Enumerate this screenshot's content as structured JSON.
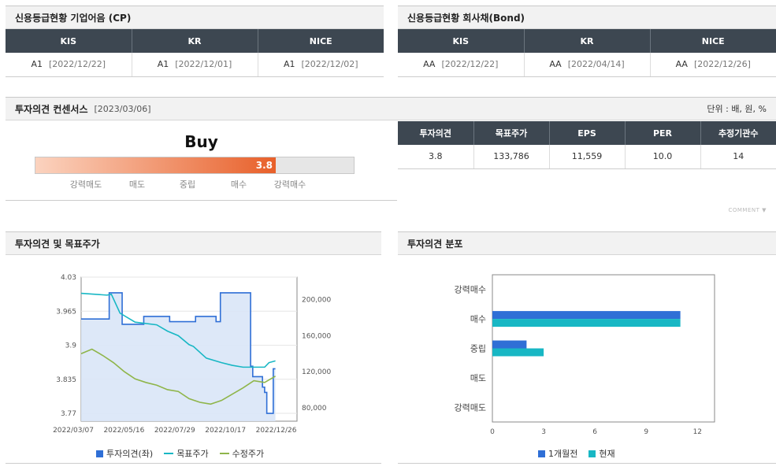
{
  "cp": {
    "title": "신용등급현황 기업어음 (CP)",
    "headers": [
      "KIS",
      "KR",
      "NICE"
    ],
    "cells": [
      {
        "grade": "A1",
        "date": "[2022/12/22]"
      },
      {
        "grade": "A1",
        "date": "[2022/12/01]"
      },
      {
        "grade": "A1",
        "date": "[2022/12/02]"
      }
    ]
  },
  "bond": {
    "title": "신용등급현황 회사채(Bond)",
    "headers": [
      "KIS",
      "KR",
      "NICE"
    ],
    "cells": [
      {
        "grade": "AA",
        "date": "[2022/12/22]"
      },
      {
        "grade": "AA",
        "date": "[2022/04/14]"
      },
      {
        "grade": "AA",
        "date": "[2022/12/26]"
      }
    ]
  },
  "consensus": {
    "title": "투자의견 컨센서스",
    "date": "[2023/03/06]",
    "unit": "단위 : 배, 원, %",
    "opinion_text": "Buy",
    "score": "3.8",
    "score_fraction": 0.755,
    "scale": [
      "강력매도",
      "매도",
      "중립",
      "매수",
      "강력매수"
    ],
    "headers": [
      "투자의견",
      "목표주가",
      "EPS",
      "PER",
      "추정기관수"
    ],
    "values": [
      "3.8",
      "133,786",
      "11,559",
      "10.0",
      "14"
    ],
    "comment_label": "COMMENT ▼"
  },
  "price_chart": {
    "title": "투자의견 및 목표주가",
    "legend": [
      "투자의견(좌)",
      "목표주가",
      "수정주가"
    ],
    "colors": {
      "opinion": "#2f6fd6",
      "target": "#18b7c4",
      "price": "#8fb54a",
      "area": "#d9e6f7"
    },
    "chart_data": {
      "type": "line",
      "x_ticks": [
        "2022/03/07",
        "2022/05/16",
        "2022/07/29",
        "2022/10/17",
        "2022/12/26"
      ],
      "y_left_ticks": [
        "4.03",
        "3.965",
        "3.9",
        "3.835",
        "3.77"
      ],
      "y_left_range": [
        3.755,
        4.03
      ],
      "y_right_ticks": [
        "200,000",
        "160,000",
        "120,000",
        "80,000"
      ],
      "y_right_range": [
        65000,
        225000
      ],
      "series": [
        {
          "name": "투자의견(좌)",
          "axis": "left",
          "points": [
            [
              0,
              3.95
            ],
            [
              0.12,
              3.95
            ],
            [
              0.13,
              4.0
            ],
            [
              0.18,
              4.0
            ],
            [
              0.19,
              3.94
            ],
            [
              0.28,
              3.94
            ],
            [
              0.29,
              3.955
            ],
            [
              0.4,
              3.955
            ],
            [
              0.41,
              3.945
            ],
            [
              0.52,
              3.945
            ],
            [
              0.53,
              3.955
            ],
            [
              0.62,
              3.955
            ],
            [
              0.625,
              3.945
            ],
            [
              0.64,
              3.945
            ],
            [
              0.645,
              4.0
            ],
            [
              0.78,
              4.0
            ],
            [
              0.785,
              3.86
            ],
            [
              0.79,
              3.86
            ],
            [
              0.795,
              3.84
            ],
            [
              0.83,
              3.84
            ],
            [
              0.84,
              3.82
            ],
            [
              0.85,
              3.81
            ],
            [
              0.86,
              3.77
            ],
            [
              0.88,
              3.77
            ],
            [
              0.89,
              3.855
            ],
            [
              0.9,
              3.855
            ]
          ]
        },
        {
          "name": "목표주가",
          "axis": "right",
          "points": [
            [
              0,
              207000
            ],
            [
              0.12,
              205000
            ],
            [
              0.14,
              206000
            ],
            [
              0.18,
              185000
            ],
            [
              0.25,
              175000
            ],
            [
              0.35,
              172000
            ],
            [
              0.4,
              165000
            ],
            [
              0.45,
              160000
            ],
            [
              0.5,
              150000
            ],
            [
              0.52,
              148000
            ],
            [
              0.58,
              135000
            ],
            [
              0.65,
              130000
            ],
            [
              0.7,
              127000
            ],
            [
              0.75,
              125000
            ],
            [
              0.8,
              125000
            ],
            [
              0.85,
              125000
            ],
            [
              0.87,
              130000
            ],
            [
              0.9,
              132000
            ]
          ]
        },
        {
          "name": "수정주가",
          "axis": "right",
          "points": [
            [
              0,
              140000
            ],
            [
              0.05,
              145000
            ],
            [
              0.1,
              138000
            ],
            [
              0.15,
              130000
            ],
            [
              0.2,
              120000
            ],
            [
              0.25,
              112000
            ],
            [
              0.3,
              108000
            ],
            [
              0.35,
              105000
            ],
            [
              0.4,
              100000
            ],
            [
              0.45,
              98000
            ],
            [
              0.5,
              90000
            ],
            [
              0.55,
              86000
            ],
            [
              0.6,
              84000
            ],
            [
              0.65,
              88000
            ],
            [
              0.7,
              95000
            ],
            [
              0.75,
              102000
            ],
            [
              0.8,
              110000
            ],
            [
              0.85,
              108000
            ],
            [
              0.9,
              115000
            ]
          ]
        }
      ]
    }
  },
  "dist_chart": {
    "title": "투자의견 분포",
    "legend": [
      "1개월전",
      "현재"
    ],
    "colors": {
      "before": "#2f6fd6",
      "now": "#18b7c4"
    },
    "chart_data": {
      "type": "bar",
      "orientation": "horizontal",
      "categories": [
        "강력매수",
        "매수",
        "중립",
        "매도",
        "강력매도"
      ],
      "x_ticks": [
        "0",
        "3",
        "6",
        "9",
        "12"
      ],
      "xlim": [
        0,
        13
      ],
      "series": [
        {
          "name": "1개월전",
          "values": [
            0,
            11,
            2,
            0,
            0
          ]
        },
        {
          "name": "현재",
          "values": [
            0,
            11,
            3,
            0,
            0
          ]
        }
      ]
    }
  }
}
